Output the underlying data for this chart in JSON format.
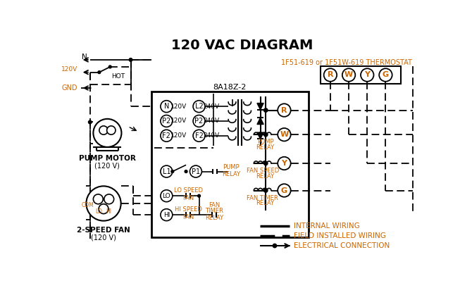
{
  "title": "120 VAC DIAGRAM",
  "bg_color": "#ffffff",
  "line_color": "#000000",
  "orange_color": "#cc6600",
  "thermostat_label": "1F51-619 or 1F51W-619 THERMOSTAT",
  "box_label": "8A18Z-2",
  "terminal_labels": [
    "R",
    "W",
    "Y",
    "G"
  ],
  "left_term_labels": [
    "N",
    "P2",
    "F2"
  ],
  "right_term_labels": [
    "L2",
    "P2",
    "F2"
  ],
  "left_voltages": [
    "120V",
    "120V",
    "120V"
  ],
  "right_voltages": [
    "240V",
    "240V",
    "240V"
  ],
  "relay_labels": [
    "R",
    "W",
    "Y",
    "G"
  ],
  "relay_texts": [
    [
      "PUMP",
      "RELAY"
    ],
    [
      "FAN SPEED",
      "RELAY"
    ],
    [
      "FAN TIMER",
      "RELAY"
    ]
  ],
  "lower_labels": [
    "L1",
    "P1",
    "LO",
    "HI"
  ],
  "legend_labels": [
    "INTERNAL WIRING",
    "FIELD INSTALLED WIRING",
    "ELECTRICAL CONNECTION"
  ]
}
